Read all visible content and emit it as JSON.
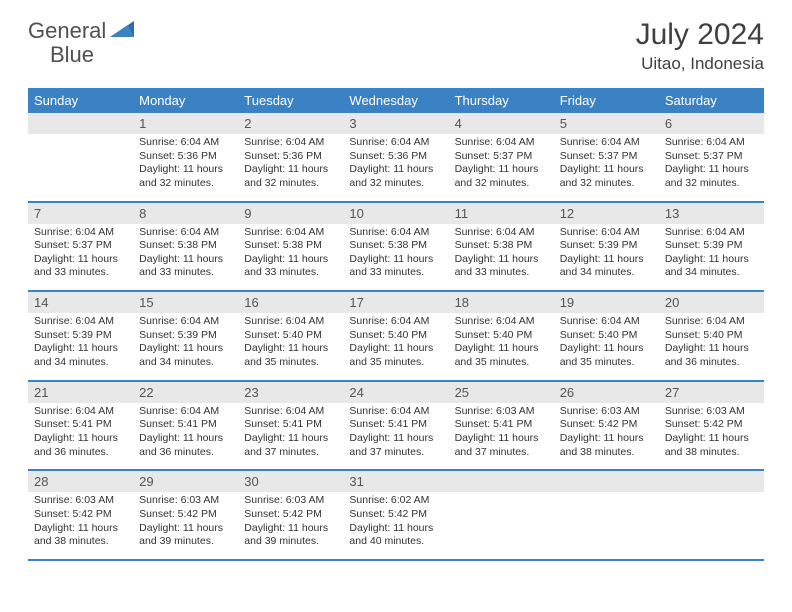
{
  "logo": {
    "text1": "General",
    "text2": "Blue"
  },
  "title": "July 2024",
  "location": "Uitao, Indonesia",
  "colors": {
    "header_bg": "#3b82c4",
    "daynum_bg": "#e8e8e8",
    "week_border": "#3b82c4",
    "text": "#333333",
    "logo_gray": "#505050",
    "logo_blue": "#3b82c4"
  },
  "typography": {
    "title_fontsize": 30,
    "location_fontsize": 17,
    "dayhead_fontsize": 13,
    "daynum_fontsize": 13,
    "body_fontsize": 10.5
  },
  "day_headers": [
    "Sunday",
    "Monday",
    "Tuesday",
    "Wednesday",
    "Thursday",
    "Friday",
    "Saturday"
  ],
  "weeks": [
    [
      {
        "n": "",
        "sunrise": "",
        "sunset": "",
        "daylight": ""
      },
      {
        "n": "1",
        "sunrise": "Sunrise: 6:04 AM",
        "sunset": "Sunset: 5:36 PM",
        "daylight": "Daylight: 11 hours and 32 minutes."
      },
      {
        "n": "2",
        "sunrise": "Sunrise: 6:04 AM",
        "sunset": "Sunset: 5:36 PM",
        "daylight": "Daylight: 11 hours and 32 minutes."
      },
      {
        "n": "3",
        "sunrise": "Sunrise: 6:04 AM",
        "sunset": "Sunset: 5:36 PM",
        "daylight": "Daylight: 11 hours and 32 minutes."
      },
      {
        "n": "4",
        "sunrise": "Sunrise: 6:04 AM",
        "sunset": "Sunset: 5:37 PM",
        "daylight": "Daylight: 11 hours and 32 minutes."
      },
      {
        "n": "5",
        "sunrise": "Sunrise: 6:04 AM",
        "sunset": "Sunset: 5:37 PM",
        "daylight": "Daylight: 11 hours and 32 minutes."
      },
      {
        "n": "6",
        "sunrise": "Sunrise: 6:04 AM",
        "sunset": "Sunset: 5:37 PM",
        "daylight": "Daylight: 11 hours and 32 minutes."
      }
    ],
    [
      {
        "n": "7",
        "sunrise": "Sunrise: 6:04 AM",
        "sunset": "Sunset: 5:37 PM",
        "daylight": "Daylight: 11 hours and 33 minutes."
      },
      {
        "n": "8",
        "sunrise": "Sunrise: 6:04 AM",
        "sunset": "Sunset: 5:38 PM",
        "daylight": "Daylight: 11 hours and 33 minutes."
      },
      {
        "n": "9",
        "sunrise": "Sunrise: 6:04 AM",
        "sunset": "Sunset: 5:38 PM",
        "daylight": "Daylight: 11 hours and 33 minutes."
      },
      {
        "n": "10",
        "sunrise": "Sunrise: 6:04 AM",
        "sunset": "Sunset: 5:38 PM",
        "daylight": "Daylight: 11 hours and 33 minutes."
      },
      {
        "n": "11",
        "sunrise": "Sunrise: 6:04 AM",
        "sunset": "Sunset: 5:38 PM",
        "daylight": "Daylight: 11 hours and 33 minutes."
      },
      {
        "n": "12",
        "sunrise": "Sunrise: 6:04 AM",
        "sunset": "Sunset: 5:39 PM",
        "daylight": "Daylight: 11 hours and 34 minutes."
      },
      {
        "n": "13",
        "sunrise": "Sunrise: 6:04 AM",
        "sunset": "Sunset: 5:39 PM",
        "daylight": "Daylight: 11 hours and 34 minutes."
      }
    ],
    [
      {
        "n": "14",
        "sunrise": "Sunrise: 6:04 AM",
        "sunset": "Sunset: 5:39 PM",
        "daylight": "Daylight: 11 hours and 34 minutes."
      },
      {
        "n": "15",
        "sunrise": "Sunrise: 6:04 AM",
        "sunset": "Sunset: 5:39 PM",
        "daylight": "Daylight: 11 hours and 34 minutes."
      },
      {
        "n": "16",
        "sunrise": "Sunrise: 6:04 AM",
        "sunset": "Sunset: 5:40 PM",
        "daylight": "Daylight: 11 hours and 35 minutes."
      },
      {
        "n": "17",
        "sunrise": "Sunrise: 6:04 AM",
        "sunset": "Sunset: 5:40 PM",
        "daylight": "Daylight: 11 hours and 35 minutes."
      },
      {
        "n": "18",
        "sunrise": "Sunrise: 6:04 AM",
        "sunset": "Sunset: 5:40 PM",
        "daylight": "Daylight: 11 hours and 35 minutes."
      },
      {
        "n": "19",
        "sunrise": "Sunrise: 6:04 AM",
        "sunset": "Sunset: 5:40 PM",
        "daylight": "Daylight: 11 hours and 35 minutes."
      },
      {
        "n": "20",
        "sunrise": "Sunrise: 6:04 AM",
        "sunset": "Sunset: 5:40 PM",
        "daylight": "Daylight: 11 hours and 36 minutes."
      }
    ],
    [
      {
        "n": "21",
        "sunrise": "Sunrise: 6:04 AM",
        "sunset": "Sunset: 5:41 PM",
        "daylight": "Daylight: 11 hours and 36 minutes."
      },
      {
        "n": "22",
        "sunrise": "Sunrise: 6:04 AM",
        "sunset": "Sunset: 5:41 PM",
        "daylight": "Daylight: 11 hours and 36 minutes."
      },
      {
        "n": "23",
        "sunrise": "Sunrise: 6:04 AM",
        "sunset": "Sunset: 5:41 PM",
        "daylight": "Daylight: 11 hours and 37 minutes."
      },
      {
        "n": "24",
        "sunrise": "Sunrise: 6:04 AM",
        "sunset": "Sunset: 5:41 PM",
        "daylight": "Daylight: 11 hours and 37 minutes."
      },
      {
        "n": "25",
        "sunrise": "Sunrise: 6:03 AM",
        "sunset": "Sunset: 5:41 PM",
        "daylight": "Daylight: 11 hours and 37 minutes."
      },
      {
        "n": "26",
        "sunrise": "Sunrise: 6:03 AM",
        "sunset": "Sunset: 5:42 PM",
        "daylight": "Daylight: 11 hours and 38 minutes."
      },
      {
        "n": "27",
        "sunrise": "Sunrise: 6:03 AM",
        "sunset": "Sunset: 5:42 PM",
        "daylight": "Daylight: 11 hours and 38 minutes."
      }
    ],
    [
      {
        "n": "28",
        "sunrise": "Sunrise: 6:03 AM",
        "sunset": "Sunset: 5:42 PM",
        "daylight": "Daylight: 11 hours and 38 minutes."
      },
      {
        "n": "29",
        "sunrise": "Sunrise: 6:03 AM",
        "sunset": "Sunset: 5:42 PM",
        "daylight": "Daylight: 11 hours and 39 minutes."
      },
      {
        "n": "30",
        "sunrise": "Sunrise: 6:03 AM",
        "sunset": "Sunset: 5:42 PM",
        "daylight": "Daylight: 11 hours and 39 minutes."
      },
      {
        "n": "31",
        "sunrise": "Sunrise: 6:02 AM",
        "sunset": "Sunset: 5:42 PM",
        "daylight": "Daylight: 11 hours and 40 minutes."
      },
      {
        "n": "",
        "sunrise": "",
        "sunset": "",
        "daylight": ""
      },
      {
        "n": "",
        "sunrise": "",
        "sunset": "",
        "daylight": ""
      },
      {
        "n": "",
        "sunrise": "",
        "sunset": "",
        "daylight": ""
      }
    ]
  ]
}
